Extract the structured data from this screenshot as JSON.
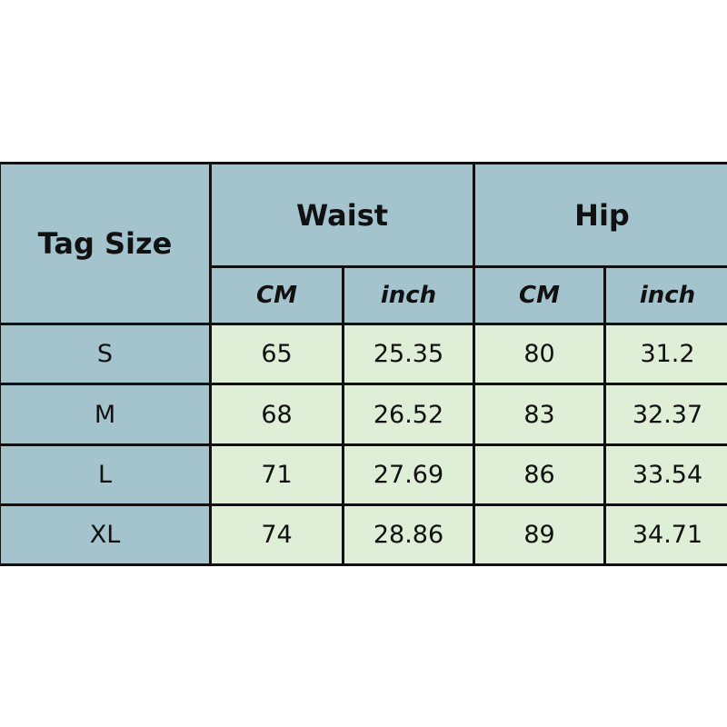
{
  "colors": {
    "header_bg": "#a3c4cc",
    "data_bg": "#dfeed6",
    "border": "#111111"
  },
  "header": {
    "tag_size": "Tag Size",
    "waist": "Waist",
    "hip": "Hip",
    "units": [
      "CM",
      "inch",
      "CM",
      "inch"
    ]
  },
  "rows": [
    {
      "size": "S",
      "waist_cm": "65",
      "waist_inch": "25.35",
      "hip_cm": "80",
      "hip_inch": "31.2"
    },
    {
      "size": "M",
      "waist_cm": "68",
      "waist_inch": "26.52",
      "hip_cm": "83",
      "hip_inch": "32.37"
    },
    {
      "size": "L",
      "waist_cm": "71",
      "waist_inch": "27.69",
      "hip_cm": "86",
      "hip_inch": "33.54"
    },
    {
      "size": "XL",
      "waist_cm": "74",
      "waist_inch": "28.86",
      "hip_cm": "89",
      "hip_inch": "34.71"
    }
  ]
}
